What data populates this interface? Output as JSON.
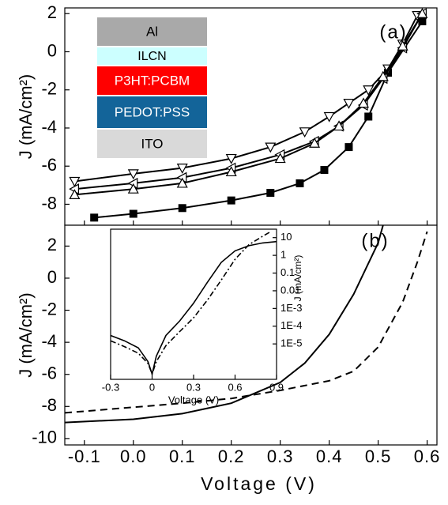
{
  "chart_data": [
    {
      "type": "line",
      "annotation": "(a)",
      "ylabel": "J (mA/cm²)",
      "xlim": [
        -0.14,
        0.62
      ],
      "ylim": [
        -9.1,
        2.3
      ],
      "yticks": [
        2,
        0,
        -2,
        -4,
        -6,
        -8
      ],
      "layers": [
        {
          "label": "Al",
          "color": "#a9a9a9"
        },
        {
          "label": "ILCN",
          "color": "#ccffff"
        },
        {
          "label": "P3HT:PCBM",
          "color": "#ff0000"
        },
        {
          "label": "PEDOT:PSS",
          "color": "#136499"
        },
        {
          "label": "ITO",
          "color": "#d9d9d9"
        }
      ],
      "series": [
        {
          "marker": "square",
          "color": "#000000",
          "x": [
            -0.08,
            0.0,
            0.1,
            0.2,
            0.28,
            0.34,
            0.39,
            0.44,
            0.48,
            0.52,
            0.59
          ],
          "values": [
            -8.7,
            -8.5,
            -8.2,
            -7.8,
            -7.4,
            -6.9,
            -6.2,
            -5.0,
            -3.4,
            -1.1,
            1.6
          ]
        },
        {
          "marker": "triangle-down",
          "color": "#000000",
          "x": [
            -0.12,
            0.0,
            0.1,
            0.2,
            0.28,
            0.35,
            0.4,
            0.44,
            0.48,
            0.52,
            0.55,
            0.58
          ],
          "values": [
            -6.8,
            -6.4,
            -6.1,
            -5.6,
            -5.0,
            -4.2,
            -3.4,
            -2.7,
            -2.0,
            -0.9,
            0.4,
            1.9
          ]
        },
        {
          "marker": "triangle-left",
          "color": "#000000",
          "x": [
            -0.12,
            0.0,
            0.1,
            0.2,
            0.3,
            0.37,
            0.42,
            0.47,
            0.51,
            0.55,
            0.59
          ],
          "values": [
            -7.2,
            -6.9,
            -6.6,
            -6.1,
            -5.4,
            -4.7,
            -3.9,
            -2.8,
            -1.4,
            0.2,
            2.0
          ]
        },
        {
          "marker": "triangle-up",
          "color": "#000000",
          "x": [
            -0.12,
            0.0,
            0.1,
            0.2,
            0.3,
            0.37,
            0.42,
            0.47,
            0.51,
            0.55,
            0.59
          ],
          "values": [
            -7.5,
            -7.2,
            -6.9,
            -6.3,
            -5.6,
            -4.8,
            -3.9,
            -2.7,
            -1.3,
            0.3,
            2.0
          ]
        }
      ]
    },
    {
      "type": "line",
      "annotation": "(b)",
      "ylabel": "J (mA/cm²)",
      "xlabel": "Voltage (V)",
      "xlim": [
        -0.14,
        0.62
      ],
      "ylim": [
        -10.4,
        3.3
      ],
      "xticks": [
        -0.1,
        {
          "value": 0,
          "label": "0.0"
        },
        0.1,
        0.2,
        0.3,
        0.4,
        0.5,
        0.6
      ],
      "yticks": [
        2,
        0,
        -2,
        -4,
        -6,
        -8,
        -10
      ],
      "series": [
        {
          "dash": "solid",
          "color": "#000000",
          "x": [
            -0.14,
            0.0,
            0.1,
            0.2,
            0.3,
            0.35,
            0.4,
            0.45,
            0.5,
            0.51
          ],
          "values": [
            -9.0,
            -8.8,
            -8.45,
            -7.8,
            -6.5,
            -5.3,
            -3.5,
            -1.0,
            2.2,
            3.3
          ]
        },
        {
          "dash": "dashed",
          "color": "#000000",
          "x": [
            -0.14,
            0.0,
            0.1,
            0.2,
            0.3,
            0.4,
            0.45,
            0.5,
            0.55,
            0.58,
            0.6
          ],
          "values": [
            -8.4,
            -8.05,
            -7.8,
            -7.5,
            -7.0,
            -6.4,
            -5.8,
            -4.3,
            -1.5,
            1.0,
            2.9
          ]
        }
      ]
    },
    {
      "type": "line",
      "xlabel": "Voltage (V)",
      "ylabel": "J (mA/cm²)",
      "yscale": "log",
      "yaxis_side": "right",
      "xlim": [
        -0.3,
        0.9
      ],
      "ylim": [
        1e-07,
        30
      ],
      "xticks": [
        -0.3,
        0.0,
        0.3,
        0.6,
        0.9
      ],
      "yticks": [
        10,
        1,
        0.1,
        0.01,
        {
          "value": 0.001,
          "label": "1E-3"
        },
        {
          "value": 0.0001,
          "label": "1E-4"
        },
        {
          "value": 1e-05,
          "label": "1E-5"
        }
      ],
      "series": [
        {
          "dash": "solid",
          "color": "#000000",
          "x": [
            -0.3,
            -0.2,
            -0.1,
            -0.03,
            0.0,
            0.03,
            0.1,
            0.2,
            0.3,
            0.4,
            0.5,
            0.6,
            0.7,
            0.8,
            0.9
          ],
          "values": [
            3e-05,
            1.5e-05,
            6e-06,
            1e-06,
            2e-07,
            2e-06,
            3e-05,
            0.0002,
            0.002,
            0.03,
            0.4,
            1.8,
            3.5,
            5,
            6
          ]
        },
        {
          "dash": "dashdot",
          "color": "#000000",
          "x": [
            -0.3,
            -0.2,
            -0.1,
            -0.03,
            0.0,
            0.03,
            0.1,
            0.2,
            0.3,
            0.4,
            0.5,
            0.6,
            0.7,
            0.8,
            0.85
          ],
          "values": [
            1.5e-05,
            7e-06,
            3e-06,
            8e-07,
            2e-07,
            1e-06,
            8e-06,
            5e-05,
            0.0003,
            0.003,
            0.04,
            0.6,
            4,
            12,
            20
          ]
        }
      ]
    }
  ]
}
